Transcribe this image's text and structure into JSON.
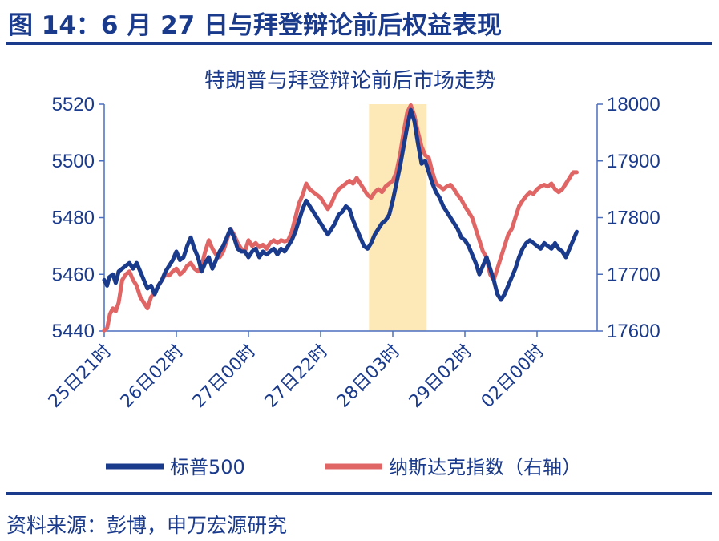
{
  "figure": {
    "title": "图 14：6 月 27 日与拜登辩论前后权益表现",
    "source": "资料来源：彭博，申万宏源研究"
  },
  "colors": {
    "spx": "#1a3a8c",
    "ndx": "#e06666",
    "highlight": "#fde9b8",
    "axis": "#4a6fbf",
    "text": "#1a3a8c"
  },
  "chart_data": {
    "type": "line",
    "title": "特朗普与拜登辩论前后市场走势",
    "legend_position": "bottom",
    "grid": false,
    "categories": [
      "25日21时",
      "26日02时",
      "27日00时",
      "27日22时",
      "28日03时",
      "29日02时",
      "02日00时"
    ],
    "ylim_left": [
      5440,
      5520
    ],
    "yticks_left": [
      5440,
      5460,
      5480,
      5500,
      5520
    ],
    "ylim_right": [
      17600,
      18000
    ],
    "yticks_right": [
      17600,
      17700,
      17800,
      17900,
      18000
    ],
    "highlight_range": [
      3.67,
      4.47
    ],
    "series": [
      {
        "name": "标普500",
        "axis": "left",
        "points": [
          [
            0,
            5458
          ],
          [
            0.04,
            5456
          ],
          [
            0.07,
            5459
          ],
          [
            0.12,
            5460
          ],
          [
            0.16,
            5457
          ],
          [
            0.2,
            5461
          ],
          [
            0.25,
            5462
          ],
          [
            0.3,
            5463
          ],
          [
            0.35,
            5464
          ],
          [
            0.4,
            5462
          ],
          [
            0.45,
            5464
          ],
          [
            0.5,
            5461
          ],
          [
            0.55,
            5458
          ],
          [
            0.6,
            5455
          ],
          [
            0.65,
            5456
          ],
          [
            0.7,
            5453
          ],
          [
            0.75,
            5456
          ],
          [
            0.8,
            5458
          ],
          [
            0.85,
            5461
          ],
          [
            0.9,
            5463
          ],
          [
            0.95,
            5465
          ],
          [
            1.0,
            5468
          ],
          [
            1.05,
            5465
          ],
          [
            1.1,
            5466
          ],
          [
            1.15,
            5470
          ],
          [
            1.2,
            5473
          ],
          [
            1.25,
            5469
          ],
          [
            1.3,
            5466
          ],
          [
            1.35,
            5461
          ],
          [
            1.4,
            5464
          ],
          [
            1.45,
            5466
          ],
          [
            1.5,
            5462
          ],
          [
            1.55,
            5465
          ],
          [
            1.6,
            5468
          ],
          [
            1.65,
            5470
          ],
          [
            1.7,
            5473
          ],
          [
            1.75,
            5476
          ],
          [
            1.8,
            5473
          ],
          [
            1.85,
            5469
          ],
          [
            1.9,
            5468
          ],
          [
            1.95,
            5468
          ],
          [
            2.0,
            5466
          ],
          [
            2.05,
            5468
          ],
          [
            2.1,
            5469
          ],
          [
            2.15,
            5466
          ],
          [
            2.2,
            5468
          ],
          [
            2.25,
            5467
          ],
          [
            2.3,
            5468
          ],
          [
            2.35,
            5469
          ],
          [
            2.4,
            5467
          ],
          [
            2.45,
            5469
          ],
          [
            2.5,
            5468
          ],
          [
            2.55,
            5470
          ],
          [
            2.6,
            5472
          ],
          [
            2.65,
            5475
          ],
          [
            2.7,
            5479
          ],
          [
            2.75,
            5483
          ],
          [
            2.8,
            5486
          ],
          [
            2.85,
            5484
          ],
          [
            2.9,
            5482
          ],
          [
            2.95,
            5480
          ],
          [
            3.0,
            5478
          ],
          [
            3.05,
            5476
          ],
          [
            3.1,
            5474
          ],
          [
            3.15,
            5476
          ],
          [
            3.2,
            5478
          ],
          [
            3.25,
            5481
          ],
          [
            3.3,
            5482
          ],
          [
            3.35,
            5484
          ],
          [
            3.4,
            5483
          ],
          [
            3.45,
            5479
          ],
          [
            3.5,
            5476
          ],
          [
            3.55,
            5473
          ],
          [
            3.6,
            5470
          ],
          [
            3.65,
            5469
          ],
          [
            3.7,
            5471
          ],
          [
            3.75,
            5474
          ],
          [
            3.8,
            5476
          ],
          [
            3.85,
            5478
          ],
          [
            3.9,
            5479
          ],
          [
            3.95,
            5481
          ],
          [
            4.0,
            5486
          ],
          [
            4.05,
            5492
          ],
          [
            4.1,
            5498
          ],
          [
            4.15,
            5505
          ],
          [
            4.2,
            5512
          ],
          [
            4.25,
            5518
          ],
          [
            4.3,
            5514
          ],
          [
            4.35,
            5506
          ],
          [
            4.4,
            5499
          ],
          [
            4.45,
            5500
          ],
          [
            4.5,
            5496
          ],
          [
            4.55,
            5492
          ],
          [
            4.6,
            5489
          ],
          [
            4.65,
            5487
          ],
          [
            4.7,
            5484
          ],
          [
            4.75,
            5482
          ],
          [
            4.8,
            5480
          ],
          [
            4.85,
            5478
          ],
          [
            4.9,
            5476
          ],
          [
            4.95,
            5473
          ],
          [
            5.0,
            5472
          ],
          [
            5.05,
            5470
          ],
          [
            5.1,
            5467
          ],
          [
            5.15,
            5464
          ],
          [
            5.2,
            5460
          ],
          [
            5.25,
            5463
          ],
          [
            5.3,
            5466
          ],
          [
            5.35,
            5462
          ],
          [
            5.4,
            5458
          ],
          [
            5.45,
            5453
          ],
          [
            5.5,
            5451
          ],
          [
            5.55,
            5453
          ],
          [
            5.6,
            5456
          ],
          [
            5.65,
            5459
          ],
          [
            5.7,
            5462
          ],
          [
            5.75,
            5466
          ],
          [
            5.8,
            5469
          ],
          [
            5.85,
            5471
          ],
          [
            5.9,
            5472
          ],
          [
            5.95,
            5471
          ],
          [
            6.0,
            5470
          ],
          [
            6.05,
            5469
          ],
          [
            6.1,
            5471
          ],
          [
            6.15,
            5470
          ],
          [
            6.2,
            5469
          ],
          [
            6.25,
            5471
          ],
          [
            6.3,
            5469
          ],
          [
            6.35,
            5468
          ],
          [
            6.4,
            5466
          ],
          [
            6.45,
            5469
          ],
          [
            6.5,
            5472
          ],
          [
            6.55,
            5475
          ]
        ]
      },
      {
        "name": "纳斯达克指数（右轴）",
        "axis": "right",
        "points": [
          [
            0,
            17601
          ],
          [
            0.04,
            17605
          ],
          [
            0.08,
            17630
          ],
          [
            0.12,
            17640
          ],
          [
            0.16,
            17635
          ],
          [
            0.2,
            17650
          ],
          [
            0.25,
            17690
          ],
          [
            0.3,
            17700
          ],
          [
            0.35,
            17705
          ],
          [
            0.4,
            17690
          ],
          [
            0.45,
            17680
          ],
          [
            0.5,
            17660
          ],
          [
            0.55,
            17650
          ],
          [
            0.6,
            17640
          ],
          [
            0.65,
            17660
          ],
          [
            0.7,
            17668
          ],
          [
            0.75,
            17680
          ],
          [
            0.8,
            17690
          ],
          [
            0.85,
            17700
          ],
          [
            0.9,
            17698
          ],
          [
            0.95,
            17705
          ],
          [
            1.0,
            17710
          ],
          [
            1.05,
            17700
          ],
          [
            1.1,
            17705
          ],
          [
            1.15,
            17715
          ],
          [
            1.2,
            17720
          ],
          [
            1.25,
            17710
          ],
          [
            1.3,
            17705
          ],
          [
            1.35,
            17715
          ],
          [
            1.4,
            17740
          ],
          [
            1.45,
            17760
          ],
          [
            1.5,
            17745
          ],
          [
            1.55,
            17735
          ],
          [
            1.6,
            17730
          ],
          [
            1.65,
            17740
          ],
          [
            1.7,
            17760
          ],
          [
            1.75,
            17780
          ],
          [
            1.8,
            17770
          ],
          [
            1.85,
            17755
          ],
          [
            1.9,
            17745
          ],
          [
            1.95,
            17740
          ],
          [
            2.0,
            17760
          ],
          [
            2.05,
            17750
          ],
          [
            2.1,
            17755
          ],
          [
            2.15,
            17748
          ],
          [
            2.2,
            17752
          ],
          [
            2.25,
            17745
          ],
          [
            2.3,
            17755
          ],
          [
            2.35,
            17760
          ],
          [
            2.4,
            17755
          ],
          [
            2.45,
            17760
          ],
          [
            2.5,
            17758
          ],
          [
            2.55,
            17760
          ],
          [
            2.6,
            17775
          ],
          [
            2.65,
            17800
          ],
          [
            2.7,
            17825
          ],
          [
            2.75,
            17840
          ],
          [
            2.8,
            17860
          ],
          [
            2.85,
            17850
          ],
          [
            2.9,
            17845
          ],
          [
            2.95,
            17840
          ],
          [
            3.0,
            17835
          ],
          [
            3.05,
            17825
          ],
          [
            3.1,
            17815
          ],
          [
            3.15,
            17825
          ],
          [
            3.2,
            17840
          ],
          [
            3.25,
            17850
          ],
          [
            3.3,
            17855
          ],
          [
            3.35,
            17860
          ],
          [
            3.4,
            17865
          ],
          [
            3.45,
            17860
          ],
          [
            3.5,
            17870
          ],
          [
            3.55,
            17860
          ],
          [
            3.6,
            17850
          ],
          [
            3.65,
            17840
          ],
          [
            3.7,
            17835
          ],
          [
            3.75,
            17845
          ],
          [
            3.8,
            17850
          ],
          [
            3.85,
            17845
          ],
          [
            3.9,
            17855
          ],
          [
            3.95,
            17860
          ],
          [
            4.0,
            17865
          ],
          [
            4.05,
            17880
          ],
          [
            4.1,
            17910
          ],
          [
            4.15,
            17950
          ],
          [
            4.2,
            17985
          ],
          [
            4.25,
            17998
          ],
          [
            4.3,
            17980
          ],
          [
            4.35,
            17950
          ],
          [
            4.4,
            17925
          ],
          [
            4.45,
            17910
          ],
          [
            4.5,
            17905
          ],
          [
            4.55,
            17880
          ],
          [
            4.6,
            17860
          ],
          [
            4.65,
            17855
          ],
          [
            4.7,
            17850
          ],
          [
            4.75,
            17855
          ],
          [
            4.8,
            17858
          ],
          [
            4.85,
            17850
          ],
          [
            4.9,
            17840
          ],
          [
            4.95,
            17832
          ],
          [
            5.0,
            17820
          ],
          [
            5.05,
            17810
          ],
          [
            5.1,
            17800
          ],
          [
            5.15,
            17780
          ],
          [
            5.2,
            17760
          ],
          [
            5.25,
            17740
          ],
          [
            5.3,
            17730
          ],
          [
            5.35,
            17700
          ],
          [
            5.4,
            17690
          ],
          [
            5.45,
            17710
          ],
          [
            5.5,
            17730
          ],
          [
            5.55,
            17750
          ],
          [
            5.6,
            17770
          ],
          [
            5.65,
            17780
          ],
          [
            5.7,
            17800
          ],
          [
            5.75,
            17820
          ],
          [
            5.8,
            17830
          ],
          [
            5.85,
            17838
          ],
          [
            5.9,
            17845
          ],
          [
            5.95,
            17842
          ],
          [
            6.0,
            17850
          ],
          [
            6.05,
            17855
          ],
          [
            6.1,
            17858
          ],
          [
            6.15,
            17855
          ],
          [
            6.2,
            17860
          ],
          [
            6.25,
            17850
          ],
          [
            6.3,
            17845
          ],
          [
            6.35,
            17850
          ],
          [
            6.4,
            17860
          ],
          [
            6.45,
            17870
          ],
          [
            6.5,
            17880
          ],
          [
            6.55,
            17880
          ]
        ]
      }
    ]
  }
}
